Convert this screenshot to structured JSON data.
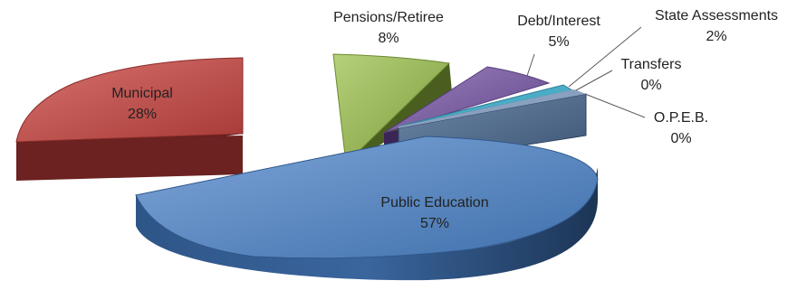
{
  "chart_data": {
    "type": "pie",
    "style": "3d-exploded",
    "title": "",
    "legend": "none",
    "slices": [
      {
        "label": "Public Education",
        "value": 57,
        "value_label": "57%",
        "color": "#4f81bd"
      },
      {
        "label": "Municipal",
        "value": 28,
        "value_label": "28%",
        "color": "#c0504d"
      },
      {
        "label": "Pensions/Retiree",
        "value": 8,
        "value_label": "8%",
        "color": "#9bbb59"
      },
      {
        "label": "Debt/Interest",
        "value": 5,
        "value_label": "5%",
        "color": "#8064a2"
      },
      {
        "label": "State Assessments",
        "value": 2,
        "value_label": "2%",
        "color": "#4bacc6"
      },
      {
        "label": "Transfers",
        "value": 0,
        "value_label": "0%",
        "color": "#f79646"
      },
      {
        "label": "O.P.E.B.",
        "value": 0,
        "value_label": "0%",
        "color": "#4f6a8c"
      }
    ]
  }
}
